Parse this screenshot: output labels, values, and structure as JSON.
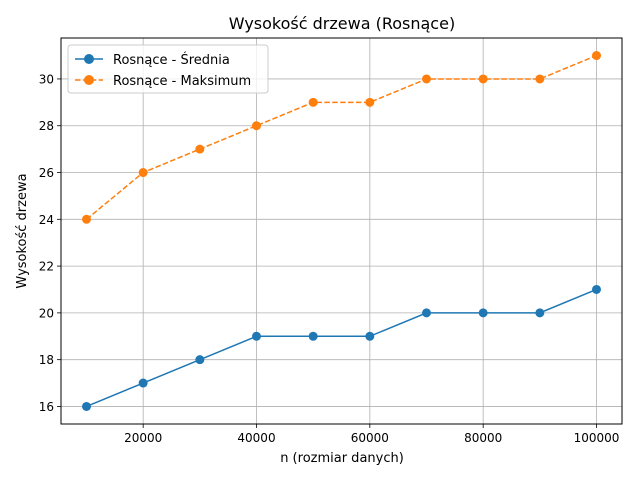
{
  "chart_data": {
    "type": "line",
    "title": "Wysokość drzewa (Rosnące)",
    "xlabel": "n (rozmiar danych)",
    "ylabel": "Wysokość drzewa",
    "xlim": [
      5500,
      104500
    ],
    "ylim": [
      15.25,
      31.75
    ],
    "x_ticks": [
      20000,
      40000,
      60000,
      80000,
      100000
    ],
    "y_ticks": [
      16,
      18,
      20,
      22,
      24,
      26,
      28,
      30
    ],
    "grid": true,
    "legend_position": "upper-left",
    "x": [
      10000,
      20000,
      30000,
      40000,
      50000,
      60000,
      70000,
      80000,
      90000,
      100000
    ],
    "series": [
      {
        "name": "Rosnące - Średnia",
        "color": "#1f77b4",
        "line_style": "solid",
        "marker": "circle",
        "values": [
          16,
          17,
          18,
          19,
          19,
          19,
          20,
          20,
          20,
          21
        ]
      },
      {
        "name": "Rosnące - Maksimum",
        "color": "#ff7f0e",
        "line_style": "dashed",
        "marker": "circle",
        "values": [
          24,
          26,
          27,
          28,
          29,
          29,
          30,
          30,
          30,
          31
        ]
      }
    ]
  }
}
